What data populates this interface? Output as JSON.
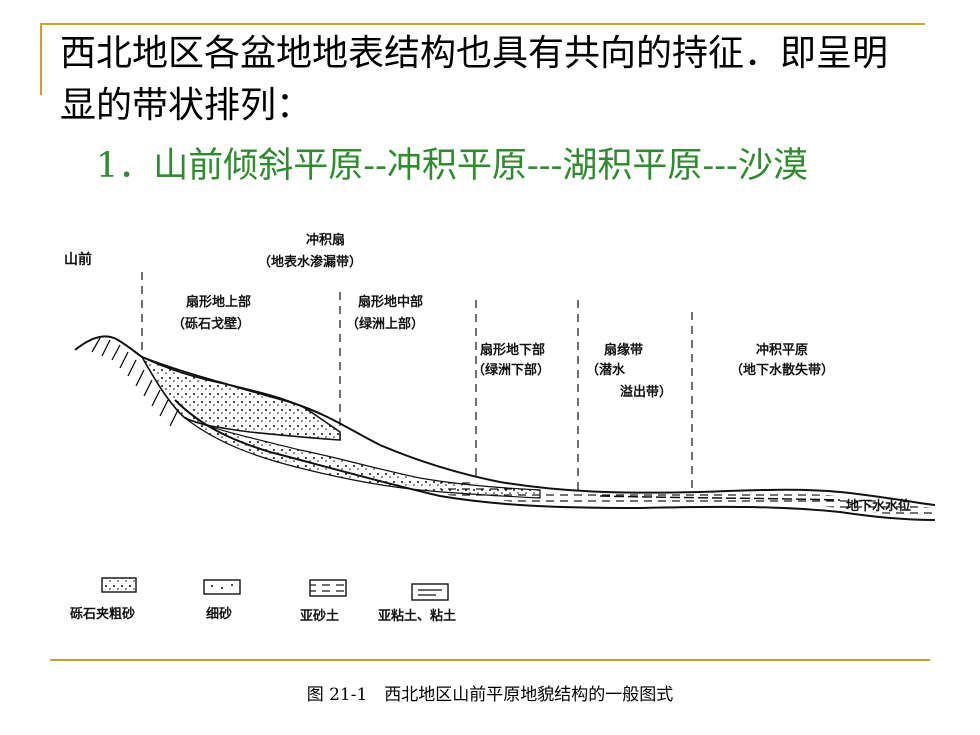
{
  "intro_text": "西北地区各盆地地表结构也具有共向的持征．即呈明显的带状排列：",
  "point_text": "1．山前倾斜平原--冲积平原---湖积平原---沙漠",
  "diagram": {
    "label_shanqian": "山前",
    "label_chongjishan": "冲积扇",
    "label_chongjishan_sub": "（地表水渗漏带）",
    "zone1": "扇形地上部",
    "zone1_sub": "（砾石戈壁）",
    "zone2": "扇形地中部",
    "zone2_sub": "（绿洲上部）",
    "zone3": "扇形地下部",
    "zone3_sub": "（绿洲下部）",
    "zone4": "扇缘带",
    "zone4_sub1": "（潜水",
    "zone4_sub2": "溢出带）",
    "zone5": "冲积平原",
    "zone5_sub": "（地下水散失带）",
    "groundwater": "地下水水位",
    "legend": [
      "砾石夹粗砂",
      "细砂",
      "亚砂土",
      "亚粘土、粘土"
    ]
  },
  "caption": "图 21-1　西北地区山前平原地貌结构的一般图式"
}
